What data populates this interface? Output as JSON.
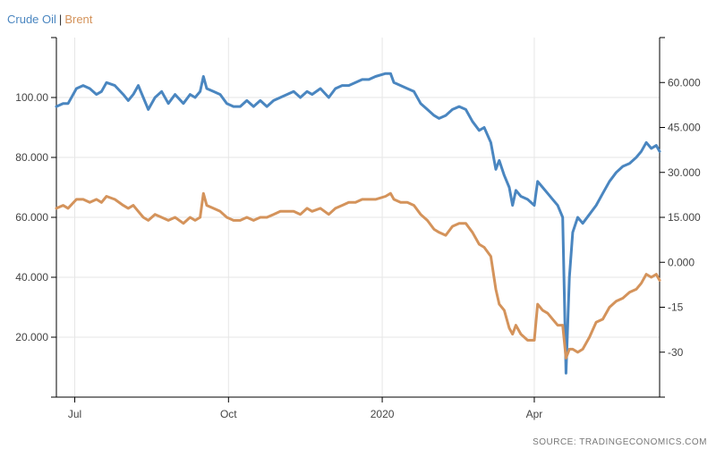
{
  "legend": {
    "series1": "Crude Oil",
    "separator": "|",
    "series2": "Brent"
  },
  "source": "SOURCE: TRADINGECONOMICS.COM",
  "colors": {
    "crude_oil": "#4a86c0",
    "brent": "#d4935b",
    "axis": "#000000",
    "grid": "#e6e6e6",
    "tick_text": "#444444"
  },
  "chart_data": {
    "type": "line",
    "title": "",
    "grid": true,
    "legend_position": "top-left",
    "x_domain": [
      "2019-06-20",
      "2020-06-15"
    ],
    "x_ticks": [
      {
        "date": "2019-07-01",
        "label": "Jul"
      },
      {
        "date": "2019-10-01",
        "label": "Oct"
      },
      {
        "date": "2020-01-01",
        "label": "2020"
      },
      {
        "date": "2020-04-01",
        "label": "Apr"
      }
    ],
    "y_left": {
      "range": [
        0,
        120
      ],
      "ticks": [
        20,
        40,
        60,
        80,
        100
      ],
      "tick_labels": [
        "20.000",
        "40.000",
        "60.000",
        "80.000",
        "100.00"
      ]
    },
    "y_right": {
      "range": [
        -45,
        75
      ],
      "ticks": [
        -30,
        -15,
        0,
        15,
        30,
        45,
        60
      ],
      "tick_labels": [
        "-30",
        "-15",
        "0.000",
        "15.000",
        "30.000",
        "45.000",
        "60.000"
      ]
    },
    "series": [
      {
        "name": "Crude Oil",
        "axis": "left",
        "points": [
          [
            "2019-06-20",
            97
          ],
          [
            "2019-06-24",
            98
          ],
          [
            "2019-06-27",
            98
          ],
          [
            "2019-07-02",
            103
          ],
          [
            "2019-07-06",
            104
          ],
          [
            "2019-07-10",
            103
          ],
          [
            "2019-07-14",
            101
          ],
          [
            "2019-07-17",
            102
          ],
          [
            "2019-07-20",
            105
          ],
          [
            "2019-07-25",
            104
          ],
          [
            "2019-07-30",
            101
          ],
          [
            "2019-08-02",
            99
          ],
          [
            "2019-08-05",
            101
          ],
          [
            "2019-08-08",
            104
          ],
          [
            "2019-08-11",
            100
          ],
          [
            "2019-08-14",
            96
          ],
          [
            "2019-08-18",
            100
          ],
          [
            "2019-08-22",
            102
          ],
          [
            "2019-08-26",
            98
          ],
          [
            "2019-08-30",
            101
          ],
          [
            "2019-09-04",
            98
          ],
          [
            "2019-09-08",
            101
          ],
          [
            "2019-09-11",
            100
          ],
          [
            "2019-09-14",
            102
          ],
          [
            "2019-09-16",
            107
          ],
          [
            "2019-09-18",
            103
          ],
          [
            "2019-09-22",
            102
          ],
          [
            "2019-09-26",
            101
          ],
          [
            "2019-09-30",
            98
          ],
          [
            "2019-10-04",
            97
          ],
          [
            "2019-10-08",
            97
          ],
          [
            "2019-10-12",
            99
          ],
          [
            "2019-10-16",
            97
          ],
          [
            "2019-10-20",
            99
          ],
          [
            "2019-10-24",
            97
          ],
          [
            "2019-10-28",
            99
          ],
          [
            "2019-11-01",
            100
          ],
          [
            "2019-11-05",
            101
          ],
          [
            "2019-11-09",
            102
          ],
          [
            "2019-11-13",
            100
          ],
          [
            "2019-11-17",
            102
          ],
          [
            "2019-11-20",
            101
          ],
          [
            "2019-11-25",
            103
          ],
          [
            "2019-11-30",
            100
          ],
          [
            "2019-12-04",
            103
          ],
          [
            "2019-12-08",
            104
          ],
          [
            "2019-12-12",
            104
          ],
          [
            "2019-12-16",
            105
          ],
          [
            "2019-12-20",
            106
          ],
          [
            "2019-12-24",
            106
          ],
          [
            "2019-12-28",
            107
          ],
          [
            "2020-01-03",
            108
          ],
          [
            "2020-01-06",
            108
          ],
          [
            "2020-01-08",
            105
          ],
          [
            "2020-01-12",
            104
          ],
          [
            "2020-01-16",
            103
          ],
          [
            "2020-01-20",
            102
          ],
          [
            "2020-01-24",
            98
          ],
          [
            "2020-01-28",
            96
          ],
          [
            "2020-02-01",
            94
          ],
          [
            "2020-02-04",
            93
          ],
          [
            "2020-02-08",
            94
          ],
          [
            "2020-02-12",
            96
          ],
          [
            "2020-02-16",
            97
          ],
          [
            "2020-02-20",
            96
          ],
          [
            "2020-02-24",
            92
          ],
          [
            "2020-02-28",
            89
          ],
          [
            "2020-03-02",
            90
          ],
          [
            "2020-03-06",
            85
          ],
          [
            "2020-03-09",
            76
          ],
          [
            "2020-03-11",
            79
          ],
          [
            "2020-03-14",
            74
          ],
          [
            "2020-03-17",
            70
          ],
          [
            "2020-03-19",
            64
          ],
          [
            "2020-03-21",
            69
          ],
          [
            "2020-03-24",
            67
          ],
          [
            "2020-03-28",
            66
          ],
          [
            "2020-04-01",
            64
          ],
          [
            "2020-04-03",
            72
          ],
          [
            "2020-04-06",
            70
          ],
          [
            "2020-04-09",
            68
          ],
          [
            "2020-04-12",
            66
          ],
          [
            "2020-04-15",
            64
          ],
          [
            "2020-04-18",
            60
          ],
          [
            "2020-04-20",
            8
          ],
          [
            "2020-04-22",
            40
          ],
          [
            "2020-04-24",
            55
          ],
          [
            "2020-04-27",
            60
          ],
          [
            "2020-04-30",
            58
          ],
          [
            "2020-05-04",
            61
          ],
          [
            "2020-05-08",
            64
          ],
          [
            "2020-05-12",
            68
          ],
          [
            "2020-05-16",
            72
          ],
          [
            "2020-05-20",
            75
          ],
          [
            "2020-05-24",
            77
          ],
          [
            "2020-05-28",
            78
          ],
          [
            "2020-06-01",
            80
          ],
          [
            "2020-06-04",
            82
          ],
          [
            "2020-06-07",
            85
          ],
          [
            "2020-06-10",
            83
          ],
          [
            "2020-06-13",
            84
          ],
          [
            "2020-06-15",
            82
          ]
        ]
      },
      {
        "name": "Brent",
        "axis": "right",
        "points": [
          [
            "2019-06-20",
            18
          ],
          [
            "2019-06-24",
            19
          ],
          [
            "2019-06-27",
            18
          ],
          [
            "2019-07-02",
            21
          ],
          [
            "2019-07-06",
            21
          ],
          [
            "2019-07-10",
            20
          ],
          [
            "2019-07-14",
            21
          ],
          [
            "2019-07-17",
            20
          ],
          [
            "2019-07-20",
            22
          ],
          [
            "2019-07-25",
            21
          ],
          [
            "2019-07-30",
            19
          ],
          [
            "2019-08-02",
            18
          ],
          [
            "2019-08-05",
            19
          ],
          [
            "2019-08-08",
            17
          ],
          [
            "2019-08-11",
            15
          ],
          [
            "2019-08-14",
            14
          ],
          [
            "2019-08-18",
            16
          ],
          [
            "2019-08-22",
            15
          ],
          [
            "2019-08-26",
            14
          ],
          [
            "2019-08-30",
            15
          ],
          [
            "2019-09-04",
            13
          ],
          [
            "2019-09-08",
            15
          ],
          [
            "2019-09-11",
            14
          ],
          [
            "2019-09-14",
            15
          ],
          [
            "2019-09-16",
            23
          ],
          [
            "2019-09-18",
            19
          ],
          [
            "2019-09-22",
            18
          ],
          [
            "2019-09-26",
            17
          ],
          [
            "2019-09-30",
            15
          ],
          [
            "2019-10-04",
            14
          ],
          [
            "2019-10-08",
            14
          ],
          [
            "2019-10-12",
            15
          ],
          [
            "2019-10-16",
            14
          ],
          [
            "2019-10-20",
            15
          ],
          [
            "2019-10-24",
            15
          ],
          [
            "2019-10-28",
            16
          ],
          [
            "2019-11-01",
            17
          ],
          [
            "2019-11-05",
            17
          ],
          [
            "2019-11-09",
            17
          ],
          [
            "2019-11-13",
            16
          ],
          [
            "2019-11-17",
            18
          ],
          [
            "2019-11-20",
            17
          ],
          [
            "2019-11-25",
            18
          ],
          [
            "2019-11-30",
            16
          ],
          [
            "2019-12-04",
            18
          ],
          [
            "2019-12-08",
            19
          ],
          [
            "2019-12-12",
            20
          ],
          [
            "2019-12-16",
            20
          ],
          [
            "2019-12-20",
            21
          ],
          [
            "2019-12-24",
            21
          ],
          [
            "2019-12-28",
            21
          ],
          [
            "2020-01-03",
            22
          ],
          [
            "2020-01-06",
            23
          ],
          [
            "2020-01-08",
            21
          ],
          [
            "2020-01-12",
            20
          ],
          [
            "2020-01-16",
            20
          ],
          [
            "2020-01-20",
            19
          ],
          [
            "2020-01-24",
            16
          ],
          [
            "2020-01-28",
            14
          ],
          [
            "2020-02-01",
            11
          ],
          [
            "2020-02-04",
            10
          ],
          [
            "2020-02-08",
            9
          ],
          [
            "2020-02-12",
            12
          ],
          [
            "2020-02-16",
            13
          ],
          [
            "2020-02-20",
            13
          ],
          [
            "2020-02-24",
            10
          ],
          [
            "2020-02-28",
            6
          ],
          [
            "2020-03-02",
            5
          ],
          [
            "2020-03-06",
            2
          ],
          [
            "2020-03-09",
            -9
          ],
          [
            "2020-03-11",
            -14
          ],
          [
            "2020-03-14",
            -16
          ],
          [
            "2020-03-17",
            -22
          ],
          [
            "2020-03-19",
            -24
          ],
          [
            "2020-03-21",
            -21
          ],
          [
            "2020-03-24",
            -24
          ],
          [
            "2020-03-28",
            -26
          ],
          [
            "2020-04-01",
            -26
          ],
          [
            "2020-04-03",
            -14
          ],
          [
            "2020-04-06",
            -16
          ],
          [
            "2020-04-09",
            -17
          ],
          [
            "2020-04-12",
            -19
          ],
          [
            "2020-04-15",
            -21
          ],
          [
            "2020-04-18",
            -21
          ],
          [
            "2020-04-20",
            -32
          ],
          [
            "2020-04-22",
            -29
          ],
          [
            "2020-04-24",
            -29
          ],
          [
            "2020-04-27",
            -30
          ],
          [
            "2020-04-30",
            -29
          ],
          [
            "2020-05-04",
            -25
          ],
          [
            "2020-05-08",
            -20
          ],
          [
            "2020-05-12",
            -19
          ],
          [
            "2020-05-16",
            -15
          ],
          [
            "2020-05-20",
            -13
          ],
          [
            "2020-05-24",
            -12
          ],
          [
            "2020-05-28",
            -10
          ],
          [
            "2020-06-01",
            -9
          ],
          [
            "2020-06-04",
            -7
          ],
          [
            "2020-06-07",
            -4
          ],
          [
            "2020-06-10",
            -5
          ],
          [
            "2020-06-13",
            -4
          ],
          [
            "2020-06-15",
            -6
          ]
        ]
      }
    ]
  }
}
